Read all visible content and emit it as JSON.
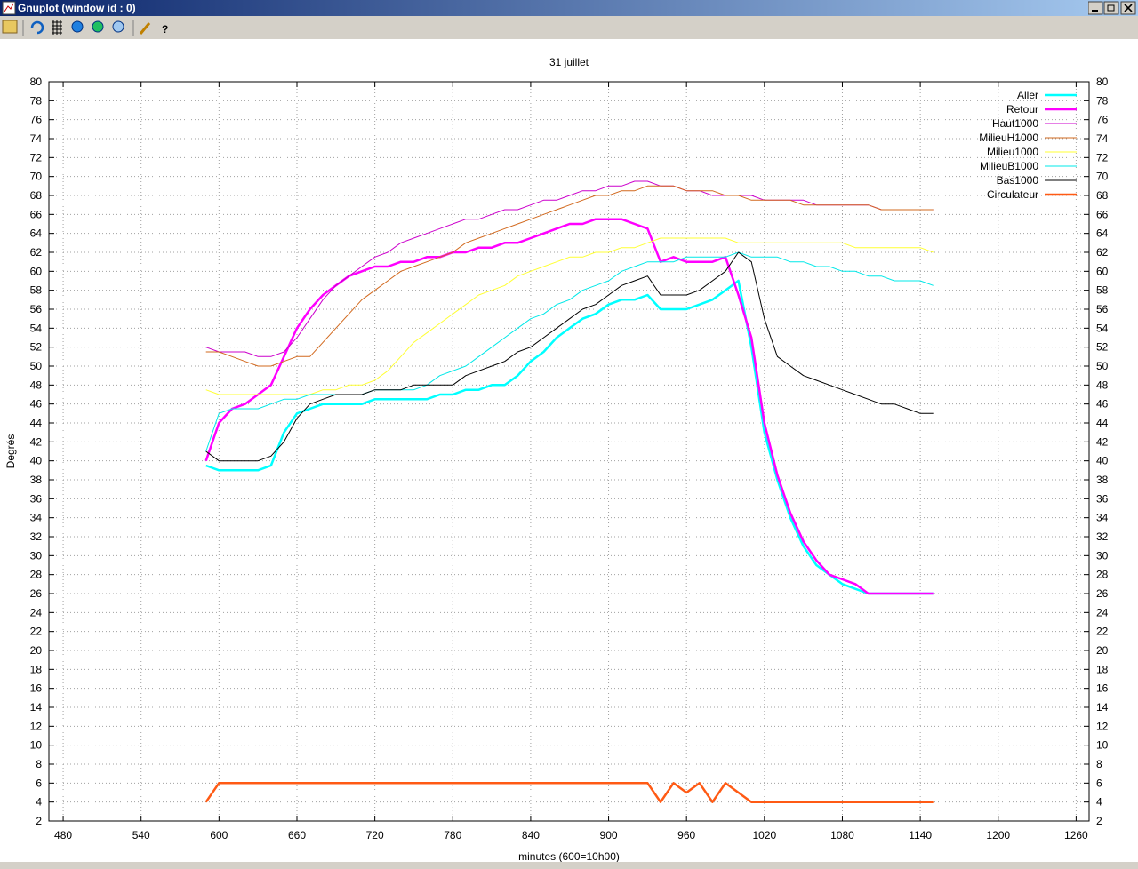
{
  "window": {
    "title": "Gnuplot (window id : 0)"
  },
  "chart_data": {
    "type": "line",
    "title": "31 juillet",
    "x_label": "minutes (600=10h00)",
    "y_label": "Degrés",
    "x": [
      590,
      600,
      610,
      620,
      630,
      640,
      650,
      660,
      670,
      680,
      690,
      700,
      710,
      720,
      730,
      740,
      750,
      760,
      770,
      780,
      790,
      800,
      810,
      820,
      830,
      840,
      850,
      860,
      870,
      880,
      890,
      900,
      910,
      920,
      930,
      940,
      950,
      960,
      970,
      980,
      990,
      1000,
      1010,
      1020,
      1030,
      1040,
      1050,
      1060,
      1070,
      1080,
      1090,
      1100,
      1110,
      1120,
      1130,
      1140,
      1150
    ],
    "xlim": [
      469,
      1270
    ],
    "xticks": [
      480,
      540,
      600,
      660,
      720,
      780,
      840,
      900,
      960,
      1020,
      1080,
      1140,
      1200,
      1260
    ],
    "ylim": [
      2,
      80
    ],
    "yticks": [
      2,
      4,
      6,
      8,
      10,
      12,
      14,
      16,
      18,
      20,
      22,
      24,
      26,
      28,
      30,
      32,
      34,
      36,
      38,
      40,
      42,
      44,
      46,
      48,
      50,
      52,
      54,
      56,
      58,
      60,
      62,
      64,
      66,
      68,
      70,
      72,
      74,
      76,
      78,
      80
    ],
    "y2lim": [
      2,
      80
    ],
    "y2ticks": [
      2,
      4,
      6,
      8,
      10,
      12,
      14,
      16,
      18,
      20,
      22,
      24,
      26,
      28,
      30,
      32,
      34,
      36,
      38,
      40,
      42,
      44,
      46,
      48,
      50,
      52,
      54,
      56,
      58,
      60,
      62,
      64,
      66,
      68,
      70,
      72,
      74,
      76,
      78,
      80
    ],
    "grid": true,
    "legend": "top-right",
    "series": [
      {
        "name": "Aller",
        "color": "#00ffff",
        "line_width": 2.5,
        "values": [
          39.5,
          39,
          39,
          39,
          39,
          39.5,
          43,
          45,
          45.5,
          46,
          46,
          46,
          46,
          46.5,
          46.5,
          46.5,
          46.5,
          46.5,
          47,
          47,
          47.5,
          47.5,
          48,
          48,
          49,
          50.5,
          51.5,
          53,
          54,
          55,
          55.5,
          56.5,
          57,
          57,
          57.5,
          56,
          56,
          56,
          56.5,
          57,
          58,
          59,
          52,
          43,
          38,
          34,
          31,
          29,
          28,
          27,
          26.5,
          26,
          26,
          26,
          26,
          26,
          26
        ]
      },
      {
        "name": "Retour",
        "color": "#ff00ff",
        "line_width": 2.5,
        "values": [
          40,
          44,
          45.5,
          46,
          47,
          48,
          51,
          54,
          56,
          57.5,
          58.5,
          59.5,
          60,
          60.5,
          60.5,
          61,
          61,
          61.5,
          61.5,
          62,
          62,
          62.5,
          62.5,
          63,
          63,
          63.5,
          64,
          64.5,
          65,
          65,
          65.5,
          65.5,
          65.5,
          65,
          64.5,
          61,
          61.5,
          61,
          61,
          61,
          61.5,
          57.5,
          53,
          44,
          38.5,
          34.5,
          31.5,
          29.5,
          28,
          27.5,
          27,
          26,
          26,
          26,
          26,
          26,
          26
        ]
      },
      {
        "name": "Haut1000",
        "color": "#cc00cc",
        "line_width": 1,
        "values": [
          52,
          51.5,
          51.5,
          51.5,
          51,
          51,
          51.5,
          53,
          55,
          57,
          58.5,
          59.5,
          60.5,
          61.5,
          62,
          63,
          63.5,
          64,
          64.5,
          65,
          65.5,
          65.5,
          66,
          66.5,
          66.5,
          67,
          67.5,
          67.5,
          68,
          68.5,
          68.5,
          69,
          69,
          69.5,
          69.5,
          69,
          69,
          68.5,
          68.5,
          68,
          68,
          68,
          68,
          67.5,
          67.5,
          67.5,
          67.5,
          67,
          67,
          67,
          67,
          67,
          66.5,
          66.5,
          66.5,
          66.5,
          66.5
        ]
      },
      {
        "name": "MilieuH1000",
        "color": "#d2691e",
        "line_width": 1,
        "values": [
          51.5,
          51.5,
          51,
          50.5,
          50,
          50,
          50.5,
          51,
          51,
          52.5,
          54,
          55.5,
          57,
          58,
          59,
          60,
          60.5,
          61,
          61.5,
          62,
          63,
          63.5,
          64,
          64.5,
          65,
          65.5,
          66,
          66.5,
          67,
          67.5,
          68,
          68,
          68.5,
          68.5,
          69,
          69,
          69,
          68.5,
          68.5,
          68.5,
          68,
          68,
          67.5,
          67.5,
          67.5,
          67.5,
          67,
          67,
          67,
          67,
          67,
          67,
          66.5,
          66.5,
          66.5,
          66.5,
          66.5
        ]
      },
      {
        "name": "Milieu1000",
        "color": "#ffff33",
        "line_width": 1,
        "values": [
          47.5,
          47,
          47,
          47,
          47,
          47,
          47,
          47,
          47,
          47.5,
          47.5,
          48,
          48,
          48.5,
          49.5,
          51,
          52.5,
          53.5,
          54.5,
          55.5,
          56.5,
          57.5,
          58,
          58.5,
          59.5,
          60,
          60.5,
          61,
          61.5,
          61.5,
          62,
          62,
          62.5,
          62.5,
          63,
          63.5,
          63.5,
          63.5,
          63.5,
          63.5,
          63.5,
          63,
          63,
          63,
          63,
          63,
          63,
          63,
          63,
          63,
          62.5,
          62.5,
          62.5,
          62.5,
          62.5,
          62.5,
          62
        ]
      },
      {
        "name": "MilieuB1000",
        "color": "#00e8e8",
        "line_width": 1,
        "values": [
          41,
          45,
          45.5,
          45.5,
          45.5,
          46,
          46.5,
          46.5,
          47,
          47,
          47,
          47,
          47,
          47.5,
          47.5,
          47.5,
          47.5,
          48,
          49,
          49.5,
          50,
          51,
          52,
          53,
          54,
          55,
          55.5,
          56.5,
          57,
          58,
          58.5,
          59,
          60,
          60.5,
          61,
          61,
          61,
          61.5,
          61.5,
          61.5,
          61.5,
          62,
          61.5,
          61.5,
          61.5,
          61,
          61,
          60.5,
          60.5,
          60,
          60,
          59.5,
          59.5,
          59,
          59,
          59,
          58.5
        ]
      },
      {
        "name": "Bas1000",
        "color": "#000000",
        "line_width": 1,
        "values": [
          41,
          40,
          40,
          40,
          40,
          40.5,
          42,
          44.5,
          46,
          46.5,
          47,
          47,
          47,
          47.5,
          47.5,
          47.5,
          48,
          48,
          48,
          48,
          49,
          49.5,
          50,
          50.5,
          51.5,
          52,
          53,
          54,
          55,
          56,
          56.5,
          57.5,
          58.5,
          59,
          59.5,
          57.5,
          57.5,
          57.5,
          58,
          59,
          60,
          62,
          61,
          55,
          51,
          50,
          49,
          48.5,
          48,
          47.5,
          47,
          46.5,
          46,
          46,
          45.5,
          45,
          45
        ]
      },
      {
        "name": "Circulateur",
        "color": "#ff5a14",
        "line_width": 2.5,
        "values": [
          4,
          6,
          6,
          6,
          6,
          6,
          6,
          6,
          6,
          6,
          6,
          6,
          6,
          6,
          6,
          6,
          6,
          6,
          6,
          6,
          6,
          6,
          6,
          6,
          6,
          6,
          6,
          6,
          6,
          6,
          6,
          6,
          6,
          6,
          6,
          4,
          6,
          5,
          6,
          4,
          6,
          5,
          4,
          4,
          4,
          4,
          4,
          4,
          4,
          4,
          4,
          4,
          4,
          4,
          4,
          4,
          4
        ]
      }
    ]
  }
}
